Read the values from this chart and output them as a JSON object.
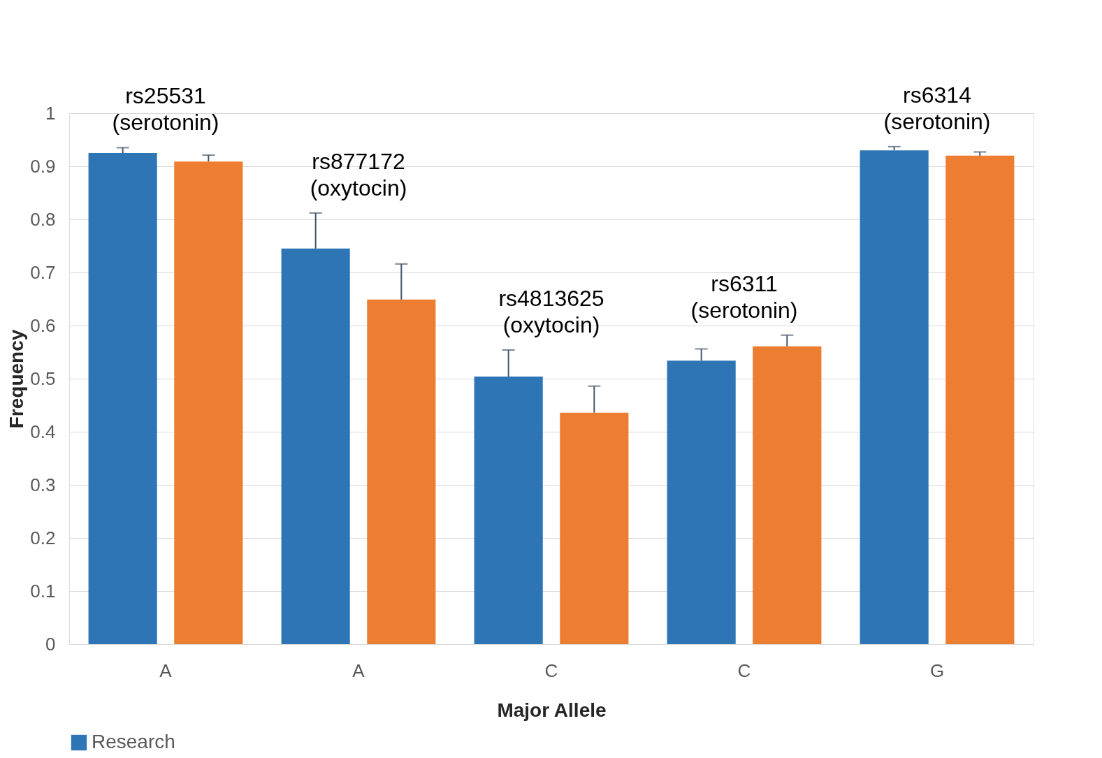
{
  "chart_data": {
    "type": "bar",
    "xlabel": "Major Allele",
    "ylabel": "Frequency",
    "categories": [
      "A",
      "A",
      "C",
      "C",
      "G"
    ],
    "series": [
      {
        "name": "Research",
        "color": "#2e75b6",
        "values": [
          0.925,
          0.745,
          0.504,
          0.534,
          0.93
        ],
        "errors": [
          [
            0.925,
            0.935
          ],
          [
            0.745,
            0.812
          ],
          [
            0.504,
            0.554
          ],
          [
            0.534,
            0.556
          ],
          [
            0.93,
            0.937
          ]
        ]
      },
      {
        "color": "#ed7d31",
        "values": [
          0.909,
          0.649,
          0.436,
          0.561,
          0.92
        ],
        "errors": [
          [
            0.909,
            0.921
          ],
          [
            0.649,
            0.716
          ],
          [
            0.436,
            0.486
          ],
          [
            0.561,
            0.582
          ],
          [
            0.92,
            0.927
          ]
        ]
      }
    ],
    "annotations": [
      "rs25531\n(serotonin)",
      "rs877172\n(oxytocin)",
      "rs4813625\n(oxytocin)",
      "rs6311\n(serotonin)",
      "rs6314\n(serotonin)"
    ],
    "ylim": [
      0,
      1
    ],
    "yticks": [
      0,
      0.1,
      0.2,
      0.3,
      0.4,
      0.5,
      0.6,
      0.7,
      0.8,
      0.9,
      1
    ],
    "grid": "y",
    "legend": "bottom"
  }
}
